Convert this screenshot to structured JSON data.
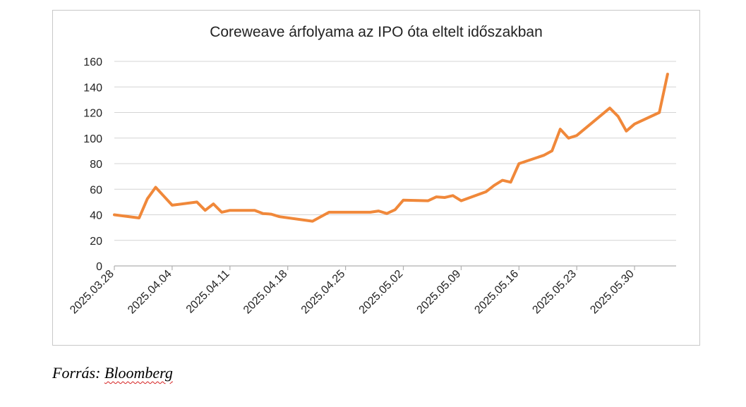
{
  "chart_data": {
    "type": "line",
    "title": "Coreweave árfolyama az IPO óta eltelt időszakban",
    "xlabel": "",
    "ylabel": "",
    "ylim": [
      0,
      160
    ],
    "yticks": [
      0,
      20,
      40,
      60,
      80,
      100,
      120,
      140,
      160
    ],
    "xticks": [
      "2025.03.28",
      "2025.04.04",
      "2025.04.11",
      "2025.04.18",
      "2025.04.25",
      "2025.05.02",
      "2025.05.09",
      "2025.05.16",
      "2025.05.23",
      "2025.05.30"
    ],
    "grid": true,
    "legend": "none",
    "line_color": "#f0883a",
    "series": [
      {
        "points": [
          [
            "2025.03.28",
            40
          ],
          [
            "2025.03.31",
            37.5
          ],
          [
            "2025.04.01",
            52.5
          ],
          [
            "2025.04.02",
            61.5
          ],
          [
            "2025.04.03",
            54.5
          ],
          [
            "2025.04.04",
            47.5
          ],
          [
            "2025.04.07",
            50
          ],
          [
            "2025.04.08",
            43.5
          ],
          [
            "2025.04.09",
            48.5
          ],
          [
            "2025.04.10",
            42
          ],
          [
            "2025.04.11",
            43.5
          ],
          [
            "2025.04.14",
            43.5
          ],
          [
            "2025.04.15",
            41
          ],
          [
            "2025.04.16",
            40.5
          ],
          [
            "2025.04.17",
            38.5
          ],
          [
            "2025.04.21",
            35
          ],
          [
            "2025.04.22",
            38.5
          ],
          [
            "2025.04.23",
            42
          ],
          [
            "2025.04.24",
            42
          ],
          [
            "2025.04.25",
            42
          ],
          [
            "2025.04.28",
            42
          ],
          [
            "2025.04.29",
            43
          ],
          [
            "2025.04.30",
            41
          ],
          [
            "2025.05.01",
            44
          ],
          [
            "2025.05.02",
            51.5
          ],
          [
            "2025.05.05",
            51
          ],
          [
            "2025.05.06",
            54
          ],
          [
            "2025.05.07",
            53.5
          ],
          [
            "2025.05.08",
            55
          ],
          [
            "2025.05.09",
            51
          ],
          [
            "2025.05.12",
            58
          ],
          [
            "2025.05.13",
            63
          ],
          [
            "2025.05.14",
            67
          ],
          [
            "2025.05.15",
            65.5
          ],
          [
            "2025.05.16",
            80
          ],
          [
            "2025.05.19",
            86.5
          ],
          [
            "2025.05.20",
            90
          ],
          [
            "2025.05.21",
            107
          ],
          [
            "2025.05.22",
            100
          ],
          [
            "2025.05.23",
            102
          ],
          [
            "2025.05.27",
            123.5
          ],
          [
            "2025.05.28",
            117
          ],
          [
            "2025.05.29",
            105.5
          ],
          [
            "2025.05.30",
            111
          ],
          [
            "2025.06.02",
            120
          ],
          [
            "2025.06.03",
            150
          ]
        ]
      }
    ]
  },
  "source": {
    "prefix": "Forrás:",
    "name": "Bloomberg"
  }
}
